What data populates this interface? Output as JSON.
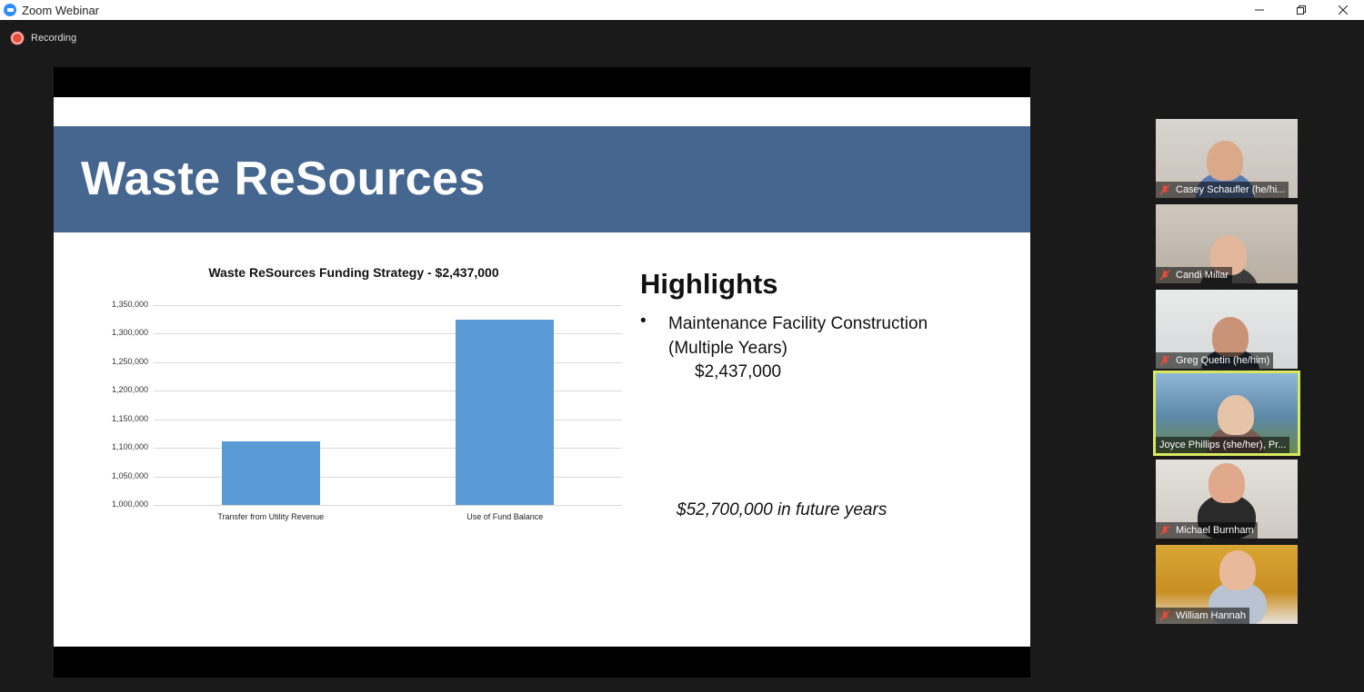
{
  "window": {
    "title": "Zoom Webinar"
  },
  "recording": {
    "label": "Recording"
  },
  "slide": {
    "title": "Waste ReSources",
    "highlights": {
      "heading": "Highlights",
      "bullet_text": "Maintenance Facility Construction (Multiple Years)",
      "bullet_amount": "$2,437,000",
      "future_note": "$52,700,000 in future years"
    }
  },
  "chart_data": {
    "type": "bar",
    "title": "Waste ReSources Funding Strategy - $2,437,000",
    "categories": [
      "Transfer from Utility Revenue",
      "Use of Fund Balance"
    ],
    "values": [
      1112000,
      1324000
    ],
    "ylim": [
      1000000,
      1350000
    ],
    "yticks": [
      "1,350,000",
      "1,300,000",
      "1,250,000",
      "1,200,000",
      "1,150,000",
      "1,100,000",
      "1,050,000",
      "1,000,000"
    ],
    "ytick_values": [
      1350000,
      1300000,
      1250000,
      1200000,
      1150000,
      1100000,
      1050000,
      1000000
    ],
    "bar_color": "#5b9bd5",
    "grid": true,
    "legend": "none"
  },
  "participants": [
    {
      "name": "Casey Schaufler (he/hi...",
      "muted": true,
      "active": false
    },
    {
      "name": "Candi Millar",
      "muted": true,
      "active": false
    },
    {
      "name": "Greg Quetin (he/him)",
      "muted": true,
      "active": false
    },
    {
      "name": "Joyce Phillips (she/her), Pr...",
      "muted": false,
      "active": true
    },
    {
      "name": "Michael Burnham",
      "muted": true,
      "active": false
    },
    {
      "name": "William Hannah",
      "muted": true,
      "active": false
    }
  ],
  "colors": {
    "banner": "#45668f",
    "active_speaker_border": "#d7e860",
    "recording_dot": "#e74c3c"
  }
}
